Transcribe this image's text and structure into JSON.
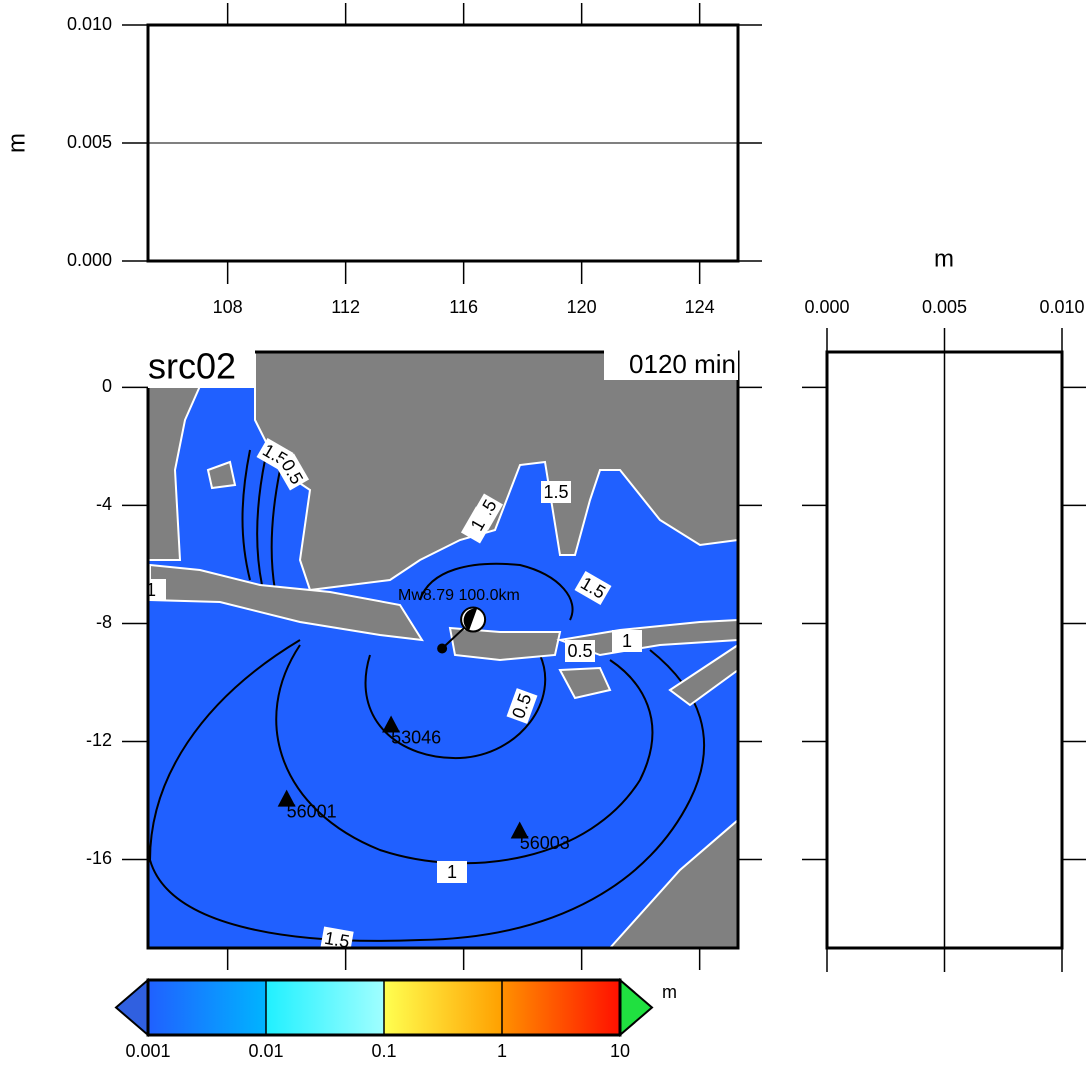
{
  "top_panel": {
    "ylabel": "m",
    "ylim": [
      0,
      0.01
    ],
    "yticks": [
      {
        "value": 0,
        "label": "0.000"
      },
      {
        "value": 0.005,
        "label": "0.005"
      },
      {
        "value": 0.01,
        "label": "0.010"
      }
    ],
    "xlim": [
      105.3,
      125.3
    ],
    "xticks": [
      108,
      112,
      116,
      120,
      124
    ]
  },
  "map": {
    "title": "src02",
    "time": "0120 min",
    "event": "Mw8.79 100.0km",
    "xlim": [
      105.3,
      125.3
    ],
    "ylim": [
      1.2,
      -19.0
    ],
    "yticks": [
      0,
      -4,
      -8,
      -12,
      -16
    ],
    "land_color": "#808080",
    "sea_color": "#2060ff",
    "epicenter": {
      "lon": 115.27,
      "lat": -8.85
    },
    "stations": [
      {
        "name": "53046",
        "lon": 113.54,
        "lat": -11.46
      },
      {
        "name": "56001",
        "lon": 110.0,
        "lat": -13.97
      },
      {
        "name": "56003",
        "lon": 117.9,
        "lat": -15.05
      }
    ],
    "contour_labels": [
      "1.5",
      "0.5",
      "0.5",
      "1",
      "1.5",
      "1.5",
      "1",
      "0.5",
      "0.5",
      "1",
      "1.5",
      "1"
    ]
  },
  "right_panel": {
    "xlabel": "m",
    "xlim": [
      0,
      0.01
    ],
    "xticks": [
      {
        "value": 0,
        "label": "0.000"
      },
      {
        "value": 0.005,
        "label": "0.005"
      },
      {
        "value": 0.01,
        "label": "0.010"
      }
    ]
  },
  "colorbar": {
    "unit": "m",
    "lim": [
      0.001,
      10
    ],
    "ticks": [
      0.001,
      0.01,
      0.1,
      1,
      10
    ],
    "segments": [
      [
        "#2060ff",
        "#00b4ff"
      ],
      [
        "#20f0ff",
        "#a0ffff"
      ],
      [
        "#ffff50",
        "#ffa000"
      ],
      [
        "#ff9000",
        "#ff1000"
      ]
    ],
    "under_color": "#3060e0",
    "over_color": "#20e040"
  }
}
